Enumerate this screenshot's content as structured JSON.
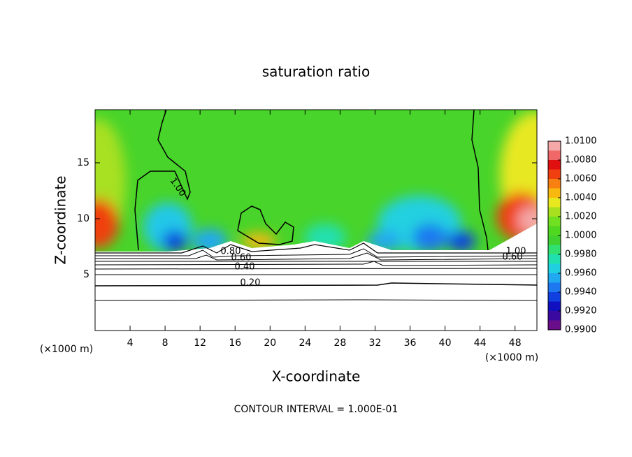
{
  "chart_data": {
    "type": "contour",
    "title": "saturation ratio",
    "x_label": "X-coordinate",
    "y_label": "Z-coordinate",
    "x_unit_labels": [
      "(×1000 m)",
      "(×1000 m)"
    ],
    "footnote": "CONTOUR INTERVAL = 1.000E-01",
    "xlim": [
      0,
      50.5
    ],
    "ylim": [
      0,
      19.75
    ],
    "xticks": [
      4,
      8,
      12,
      16,
      20,
      24,
      28,
      32,
      36,
      40,
      44,
      48
    ],
    "yticks": [
      5,
      10,
      15
    ],
    "colorbar": {
      "levels": [
        0.99,
        0.991,
        0.992,
        0.993,
        0.994,
        0.995,
        0.996,
        0.997,
        0.998,
        0.999,
        1.0,
        1.001,
        1.002,
        1.003,
        1.004,
        1.005,
        1.006,
        1.007,
        1.008,
        1.009,
        1.01
      ],
      "colors": [
        "#6a0d8a",
        "#3a0aa0",
        "#1010c0",
        "#1040e0",
        "#1e78f0",
        "#20a8f0",
        "#20d0e0",
        "#20e0b0",
        "#30e070",
        "#40d030",
        "#50d820",
        "#70e020",
        "#a8e020",
        "#e8e820",
        "#f8b810",
        "#f88010",
        "#f04010",
        "#e01010",
        "#f06868",
        "#f4a8a8"
      ],
      "ticks": [
        {
          "value": 0.99,
          "label": "0.9900"
        },
        {
          "value": 0.992,
          "label": "0.9920"
        },
        {
          "value": 0.994,
          "label": "0.9940"
        },
        {
          "value": 0.996,
          "label": "0.9960"
        },
        {
          "value": 0.998,
          "label": "0.9980"
        },
        {
          "value": 1.0,
          "label": "1.0000"
        },
        {
          "value": 1.002,
          "label": "1.0020"
        },
        {
          "value": 1.004,
          "label": "1.0040"
        },
        {
          "value": 1.006,
          "label": "1.0060"
        },
        {
          "value": 1.008,
          "label": "1.0080"
        },
        {
          "value": 1.01,
          "label": "1.0100"
        }
      ]
    },
    "contour_labels": [
      "1.00",
      "0.80",
      "0.60",
      "0.40",
      "0.20",
      "1.00",
      "0.60"
    ]
  }
}
